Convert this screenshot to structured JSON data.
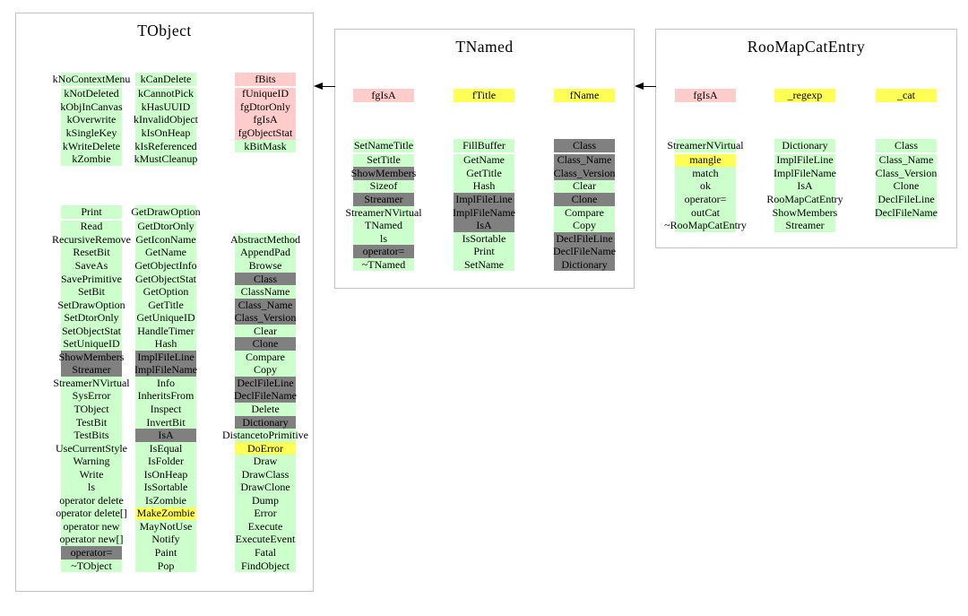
{
  "colors": {
    "green": "#ccffcc",
    "pink": "#ffcccc",
    "yellow": "#ffff55",
    "gray": "#808080",
    "box_border": "#c3c3c3",
    "arrow": "#000000"
  },
  "arrows": [
    {
      "from": "TNamed",
      "to": "TObject",
      "direction": "left"
    },
    {
      "from": "RooMapCatEntry",
      "to": "TNamed",
      "direction": "left"
    }
  ],
  "classes": [
    {
      "name": "TObject",
      "sections": [
        {
          "kind": "fields",
          "columns": [
            [
              {
                "t": "kNoContextMenu",
                "c": "green"
              },
              {
                "t": "kNotDeleted",
                "c": "green"
              },
              {
                "t": "kObjInCanvas",
                "c": "green"
              },
              {
                "t": "kOverwrite",
                "c": "green"
              },
              {
                "t": "kSingleKey",
                "c": "green"
              },
              {
                "t": "kWriteDelete",
                "c": "green"
              },
              {
                "t": "kZombie",
                "c": "green"
              }
            ],
            [
              {
                "t": "kCanDelete",
                "c": "green"
              },
              {
                "t": "kCannotPick",
                "c": "green"
              },
              {
                "t": "kHasUUID",
                "c": "green"
              },
              {
                "t": "kInvalidObject",
                "c": "green"
              },
              {
                "t": "kIsOnHeap",
                "c": "green"
              },
              {
                "t": "kIsReferenced",
                "c": "green"
              },
              {
                "t": "kMustCleanup",
                "c": "green"
              }
            ],
            [
              {
                "t": "fBits",
                "c": "pink"
              },
              {
                "t": "fUniqueID",
                "c": "pink"
              },
              {
                "t": "fgDtorOnly",
                "c": "pink"
              },
              {
                "t": "fgIsA",
                "c": "pink"
              },
              {
                "t": "fgObjectStat",
                "c": "pink"
              },
              {
                "t": "kBitMask",
                "c": "green"
              }
            ]
          ]
        },
        {
          "kind": "methods",
          "columns": [
            [
              {
                "t": "Print",
                "c": "green"
              },
              {
                "t": "Read",
                "c": "green"
              },
              {
                "t": "RecursiveRemove",
                "c": "green"
              },
              {
                "t": "ResetBit",
                "c": "green"
              },
              {
                "t": "SaveAs",
                "c": "green"
              },
              {
                "t": "SavePrimitive",
                "c": "green"
              },
              {
                "t": "SetBit",
                "c": "green"
              },
              {
                "t": "SetDrawOption",
                "c": "green"
              },
              {
                "t": "SetDtorOnly",
                "c": "green"
              },
              {
                "t": "SetObjectStat",
                "c": "green"
              },
              {
                "t": "SetUniqueID",
                "c": "green"
              },
              {
                "t": "ShowMembers",
                "c": "gray"
              },
              {
                "t": "Streamer",
                "c": "gray"
              },
              {
                "t": "StreamerNVirtual",
                "c": "green"
              },
              {
                "t": "SysError",
                "c": "green"
              },
              {
                "t": "TObject",
                "c": "green"
              },
              {
                "t": "TestBit",
                "c": "green"
              },
              {
                "t": "TestBits",
                "c": "green"
              },
              {
                "t": "UseCurrentStyle",
                "c": "green"
              },
              {
                "t": "Warning",
                "c": "green"
              },
              {
                "t": "Write",
                "c": "green"
              },
              {
                "t": "ls",
                "c": "green"
              },
              {
                "t": "operator delete",
                "c": "green"
              },
              {
                "t": "operator delete[]",
                "c": "green"
              },
              {
                "t": "operator new",
                "c": "green"
              },
              {
                "t": "operator new[]",
                "c": "green"
              },
              {
                "t": "operator=",
                "c": "gray"
              },
              {
                "t": "~TObject",
                "c": "green"
              }
            ],
            [
              {
                "t": "GetDrawOption",
                "c": "green"
              },
              {
                "t": "GetDtorOnly",
                "c": "green"
              },
              {
                "t": "GetIconName",
                "c": "green"
              },
              {
                "t": "GetName",
                "c": "green"
              },
              {
                "t": "GetObjectInfo",
                "c": "green"
              },
              {
                "t": "GetObjectStat",
                "c": "green"
              },
              {
                "t": "GetOption",
                "c": "green"
              },
              {
                "t": "GetTitle",
                "c": "green"
              },
              {
                "t": "GetUniqueID",
                "c": "green"
              },
              {
                "t": "HandleTimer",
                "c": "green"
              },
              {
                "t": "Hash",
                "c": "green"
              },
              {
                "t": "ImplFileLine",
                "c": "gray"
              },
              {
                "t": "ImplFileName",
                "c": "gray"
              },
              {
                "t": "Info",
                "c": "green"
              },
              {
                "t": "InheritsFrom",
                "c": "green"
              },
              {
                "t": "Inspect",
                "c": "green"
              },
              {
                "t": "InvertBit",
                "c": "green"
              },
              {
                "t": "IsA",
                "c": "gray"
              },
              {
                "t": "IsEqual",
                "c": "green"
              },
              {
                "t": "IsFolder",
                "c": "green"
              },
              {
                "t": "IsOnHeap",
                "c": "green"
              },
              {
                "t": "IsSortable",
                "c": "green"
              },
              {
                "t": "IsZombie",
                "c": "green"
              },
              {
                "t": "MakeZombie",
                "c": "yellow"
              },
              {
                "t": "MayNotUse",
                "c": "green"
              },
              {
                "t": "Notify",
                "c": "green"
              },
              {
                "t": "Paint",
                "c": "green"
              },
              {
                "t": "Pop",
                "c": "green"
              }
            ],
            [
              null,
              null,
              {
                "t": "AbstractMethod",
                "c": "green"
              },
              {
                "t": "AppendPad",
                "c": "green"
              },
              {
                "t": "Browse",
                "c": "green"
              },
              {
                "t": "Class",
                "c": "gray"
              },
              {
                "t": "ClassName",
                "c": "green"
              },
              {
                "t": "Class_Name",
                "c": "gray"
              },
              {
                "t": "Class_Version",
                "c": "gray"
              },
              {
                "t": "Clear",
                "c": "green"
              },
              {
                "t": "Clone",
                "c": "gray"
              },
              {
                "t": "Compare",
                "c": "green"
              },
              {
                "t": "Copy",
                "c": "green"
              },
              {
                "t": "DeclFileLine",
                "c": "gray"
              },
              {
                "t": "DeclFileName",
                "c": "gray"
              },
              {
                "t": "Delete",
                "c": "green"
              },
              {
                "t": "Dictionary",
                "c": "gray"
              },
              {
                "t": "DistancetoPrimitive",
                "c": "green"
              },
              {
                "t": "DoError",
                "c": "yellow"
              },
              {
                "t": "Draw",
                "c": "green"
              },
              {
                "t": "DrawClass",
                "c": "green"
              },
              {
                "t": "DrawClone",
                "c": "green"
              },
              {
                "t": "Dump",
                "c": "green"
              },
              {
                "t": "Error",
                "c": "green"
              },
              {
                "t": "Execute",
                "c": "green"
              },
              {
                "t": "ExecuteEvent",
                "c": "green"
              },
              {
                "t": "Fatal",
                "c": "green"
              },
              {
                "t": "FindObject",
                "c": "green"
              }
            ]
          ]
        }
      ]
    },
    {
      "name": "TNamed",
      "sections": [
        {
          "kind": "fields",
          "columns": [
            [
              {
                "t": "fgIsA",
                "c": "pink"
              }
            ],
            [
              {
                "t": "fTitle",
                "c": "yellow"
              }
            ],
            [
              {
                "t": "fName",
                "c": "yellow"
              }
            ]
          ]
        },
        {
          "kind": "methods",
          "columns": [
            [
              {
                "t": "SetNameTitle",
                "c": "green"
              },
              {
                "t": "SetTitle",
                "c": "green"
              },
              {
                "t": "ShowMembers",
                "c": "gray"
              },
              {
                "t": "Sizeof",
                "c": "green"
              },
              {
                "t": "Streamer",
                "c": "gray"
              },
              {
                "t": "StreamerNVirtual",
                "c": "green"
              },
              {
                "t": "TNamed",
                "c": "green"
              },
              {
                "t": "ls",
                "c": "green"
              },
              {
                "t": "operator=",
                "c": "gray"
              },
              {
                "t": "~TNamed",
                "c": "green"
              }
            ],
            [
              {
                "t": "FillBuffer",
                "c": "green"
              },
              {
                "t": "GetName",
                "c": "green"
              },
              {
                "t": "GetTitle",
                "c": "green"
              },
              {
                "t": "Hash",
                "c": "green"
              },
              {
                "t": "ImplFileLine",
                "c": "gray"
              },
              {
                "t": "ImplFileName",
                "c": "gray"
              },
              {
                "t": "IsA",
                "c": "gray"
              },
              {
                "t": "IsSortable",
                "c": "green"
              },
              {
                "t": "Print",
                "c": "green"
              },
              {
                "t": "SetName",
                "c": "green"
              }
            ],
            [
              {
                "t": "Class",
                "c": "gray"
              },
              {
                "t": "Class_Name",
                "c": "gray"
              },
              {
                "t": "Class_Version",
                "c": "gray"
              },
              {
                "t": "Clear",
                "c": "green"
              },
              {
                "t": "Clone",
                "c": "gray"
              },
              {
                "t": "Compare",
                "c": "green"
              },
              {
                "t": "Copy",
                "c": "green"
              },
              {
                "t": "DeclFileLine",
                "c": "gray"
              },
              {
                "t": "DeclFileName",
                "c": "gray"
              },
              {
                "t": "Dictionary",
                "c": "gray"
              }
            ]
          ]
        }
      ]
    },
    {
      "name": "RooMapCatEntry",
      "sections": [
        {
          "kind": "fields",
          "columns": [
            [
              {
                "t": "fgIsA",
                "c": "pink"
              }
            ],
            [
              {
                "t": "_regexp",
                "c": "yellow"
              }
            ],
            [
              {
                "t": "_cat",
                "c": "yellow"
              }
            ]
          ]
        },
        {
          "kind": "methods",
          "columns": [
            [
              {
                "t": "StreamerNVirtual",
                "c": "green"
              },
              {
                "t": "mangle",
                "c": "yellow"
              },
              {
                "t": "match",
                "c": "green"
              },
              {
                "t": "ok",
                "c": "green"
              },
              {
                "t": "operator=",
                "c": "green"
              },
              {
                "t": "outCat",
                "c": "green"
              },
              {
                "t": "~RooMapCatEntry",
                "c": "green"
              }
            ],
            [
              {
                "t": "Dictionary",
                "c": "green"
              },
              {
                "t": "ImplFileLine",
                "c": "green"
              },
              {
                "t": "ImplFileName",
                "c": "green"
              },
              {
                "t": "IsA",
                "c": "green"
              },
              {
                "t": "RooMapCatEntry",
                "c": "green"
              },
              {
                "t": "ShowMembers",
                "c": "green"
              },
              {
                "t": "Streamer",
                "c": "green"
              }
            ],
            [
              {
                "t": "Class",
                "c": "green"
              },
              {
                "t": "Class_Name",
                "c": "green"
              },
              {
                "t": "Class_Version",
                "c": "green"
              },
              {
                "t": "Clone",
                "c": "green"
              },
              {
                "t": "DeclFileLine",
                "c": "green"
              },
              {
                "t": "DeclFileName",
                "c": "green"
              }
            ]
          ]
        }
      ]
    }
  ]
}
